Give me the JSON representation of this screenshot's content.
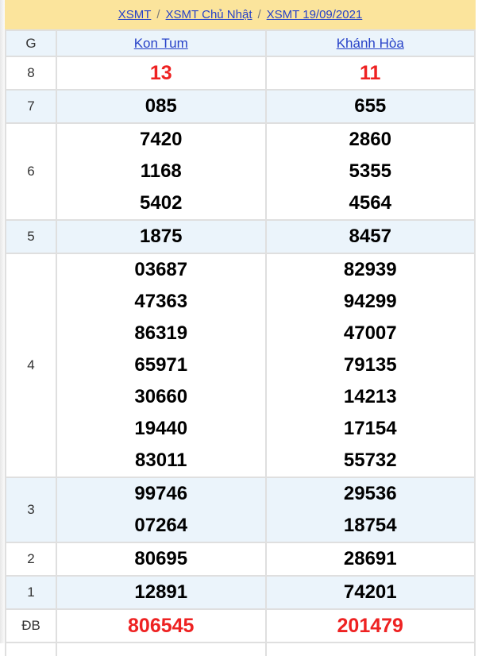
{
  "breadcrumb": {
    "items": [
      "XSMT",
      "XSMT Chủ Nhật",
      "XSMT 19/09/2021"
    ],
    "separator": "/"
  },
  "table": {
    "header": {
      "prize_col": "G",
      "region1": "Kon Tum",
      "region2": "Khánh Hòa"
    },
    "rows": [
      {
        "label": "8",
        "red": true,
        "col1": [
          "13"
        ],
        "col2": [
          "11"
        ]
      },
      {
        "label": "7",
        "red": false,
        "col1": [
          "085"
        ],
        "col2": [
          "655"
        ]
      },
      {
        "label": "6",
        "red": false,
        "col1": [
          "7420",
          "1168",
          "5402"
        ],
        "col2": [
          "2860",
          "5355",
          "4564"
        ]
      },
      {
        "label": "5",
        "red": false,
        "col1": [
          "1875"
        ],
        "col2": [
          "8457"
        ]
      },
      {
        "label": "4",
        "red": false,
        "col1": [
          "03687",
          "47363",
          "86319",
          "65971",
          "30660",
          "19440",
          "83011"
        ],
        "col2": [
          "82939",
          "94299",
          "47007",
          "79135",
          "14213",
          "17154",
          "55732"
        ]
      },
      {
        "label": "3",
        "red": false,
        "col1": [
          "99746",
          "07264"
        ],
        "col2": [
          "29536",
          "18754"
        ]
      },
      {
        "label": "2",
        "red": false,
        "col1": [
          "80695"
        ],
        "col2": [
          "28691"
        ]
      },
      {
        "label": "1",
        "red": false,
        "col1": [
          "12891"
        ],
        "col2": [
          "74201"
        ]
      },
      {
        "label": "ĐB",
        "red": true,
        "col1": [
          "806545"
        ],
        "col2": [
          "201479"
        ]
      }
    ]
  },
  "colors": {
    "banner_yellow": "#fbe49c",
    "row_blue": "#ebf4fb",
    "link_blue": "#2742c8",
    "result_red": "#ee2222",
    "border_gray": "#dfdfdf"
  }
}
